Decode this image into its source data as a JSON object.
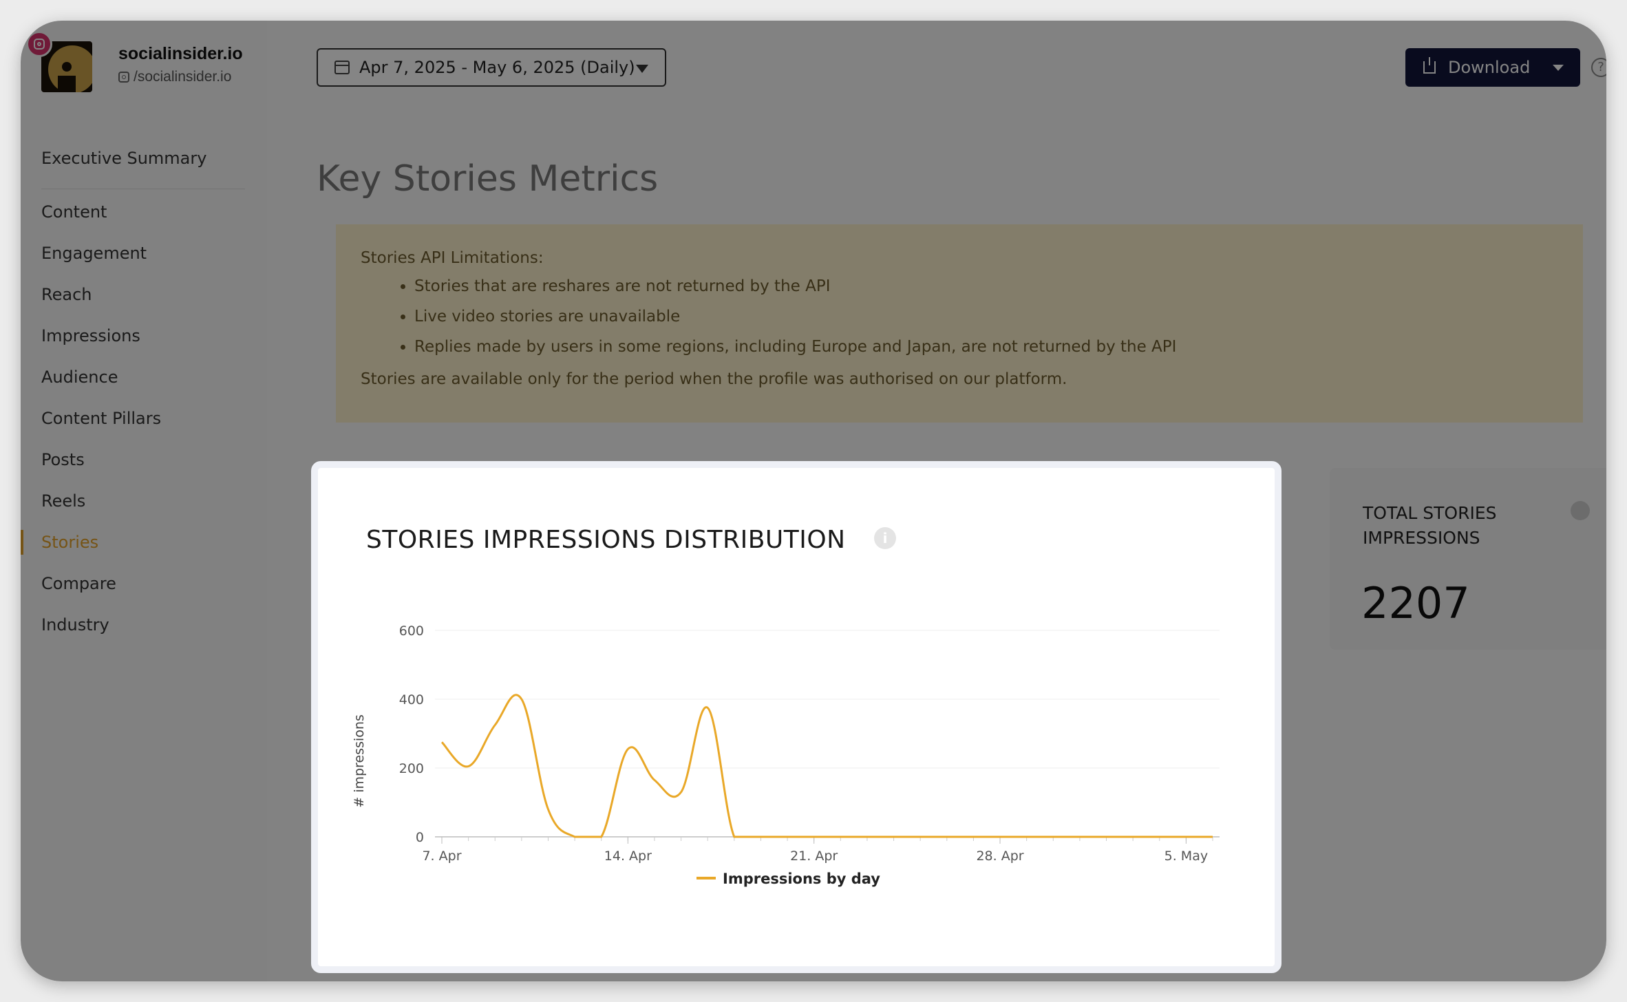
{
  "profile": {
    "name": "socialinsider.io",
    "handle": "/socialinsider.io"
  },
  "sidebar": {
    "items": [
      {
        "label": "Executive Summary",
        "active": false
      },
      {
        "label": "Content",
        "active": false
      },
      {
        "label": "Engagement",
        "active": false
      },
      {
        "label": "Reach",
        "active": false
      },
      {
        "label": "Impressions",
        "active": false
      },
      {
        "label": "Audience",
        "active": false
      },
      {
        "label": "Content Pillars",
        "active": false
      },
      {
        "label": "Posts",
        "active": false
      },
      {
        "label": "Reels",
        "active": false
      },
      {
        "label": "Stories",
        "active": true
      },
      {
        "label": "Compare",
        "active": false
      },
      {
        "label": "Industry",
        "active": false
      }
    ],
    "accent": "#e2a12b"
  },
  "header": {
    "date_range": "Apr 7, 2025 - May 6, 2025 (Daily)",
    "download_label": "Download"
  },
  "page": {
    "title": "Key Stories Metrics"
  },
  "notice": {
    "heading": "Stories API Limitations:",
    "bullets": [
      "Stories that are reshares are not returned by the API",
      "Live video stories are unavailable",
      "Replies made by users in some regions, including Europe and Japan, are not returned by the API"
    ],
    "footer": "Stories are available only for the period when the profile was authorised on our platform."
  },
  "total_card": {
    "title": "TOTAL STORIES IMPRESSIONS",
    "value": "2207"
  },
  "chart_card": {
    "title": "STORIES IMPRESSIONS DISTRIBUTION"
  },
  "chart_data": {
    "type": "line",
    "title": "STORIES IMPRESSIONS DISTRIBUTION",
    "ylabel": "# impressions",
    "xlabel": "",
    "ylim": [
      0,
      600
    ],
    "yticks": [
      0,
      200,
      400,
      600
    ],
    "xticks": [
      "7. Apr",
      "14. Apr",
      "21. Apr",
      "28. Apr",
      "5. May"
    ],
    "x": [
      "Apr 7",
      "Apr 8",
      "Apr 9",
      "Apr 10",
      "Apr 11",
      "Apr 12",
      "Apr 13",
      "Apr 14",
      "Apr 15",
      "Apr 16",
      "Apr 17",
      "Apr 18",
      "Apr 19",
      "Apr 20",
      "Apr 21",
      "Apr 22",
      "Apr 23",
      "Apr 24",
      "Apr 25",
      "Apr 26",
      "Apr 27",
      "Apr 28",
      "Apr 29",
      "Apr 30",
      "May 1",
      "May 2",
      "May 3",
      "May 4",
      "May 5",
      "May 6"
    ],
    "series": [
      {
        "name": "Impressions by day",
        "color": "#e9a828",
        "values": [
          275,
          205,
          325,
          400,
          80,
          0,
          0,
          255,
          165,
          130,
          375,
          0,
          0,
          0,
          0,
          0,
          0,
          0,
          0,
          0,
          0,
          0,
          0,
          0,
          0,
          0,
          0,
          0,
          0,
          0
        ]
      }
    ],
    "grid": true,
    "legend": "bottom-center"
  }
}
